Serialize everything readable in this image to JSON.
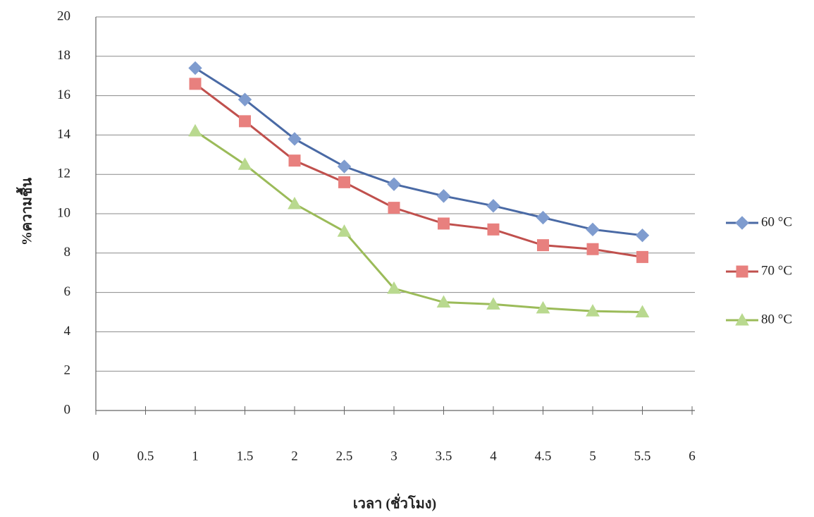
{
  "chart_data": {
    "type": "line",
    "x_label": "เวลา (ชั่วโมง)",
    "y_label": "%ความชื้น",
    "x": [
      1,
      1.5,
      2,
      2.5,
      3,
      3.5,
      4,
      4.5,
      5,
      5.5
    ],
    "series": [
      {
        "name": "60 °C",
        "color": "#4a6aa5",
        "marker_color": "#7f9ccf",
        "marker": "diamond",
        "values": [
          17.4,
          15.8,
          13.8,
          12.4,
          11.5,
          10.9,
          10.4,
          9.8,
          9.2,
          8.9
        ]
      },
      {
        "name": "70 °C",
        "color": "#c0504d",
        "marker_color": "#e8807e",
        "marker": "square",
        "values": [
          16.6,
          14.7,
          12.7,
          11.6,
          10.3,
          9.5,
          9.2,
          8.4,
          8.2,
          7.8
        ]
      },
      {
        "name": "80 °C",
        "color": "#9bbb59",
        "marker_color": "#b9d98f",
        "marker": "triangle",
        "values": [
          14.2,
          12.5,
          10.5,
          9.1,
          6.2,
          5.5,
          5.4,
          5.2,
          5.05,
          5.0
        ]
      }
    ],
    "xlim": [
      0,
      6
    ],
    "xticks": [
      0,
      0.5,
      1,
      1.5,
      2,
      2.5,
      3,
      3.5,
      4,
      4.5,
      5,
      5.5,
      6
    ],
    "ylim": [
      0,
      20
    ],
    "yticks": [
      0,
      2,
      4,
      6,
      8,
      10,
      12,
      14,
      16,
      18,
      20
    ],
    "grid": true,
    "legend": "right"
  }
}
